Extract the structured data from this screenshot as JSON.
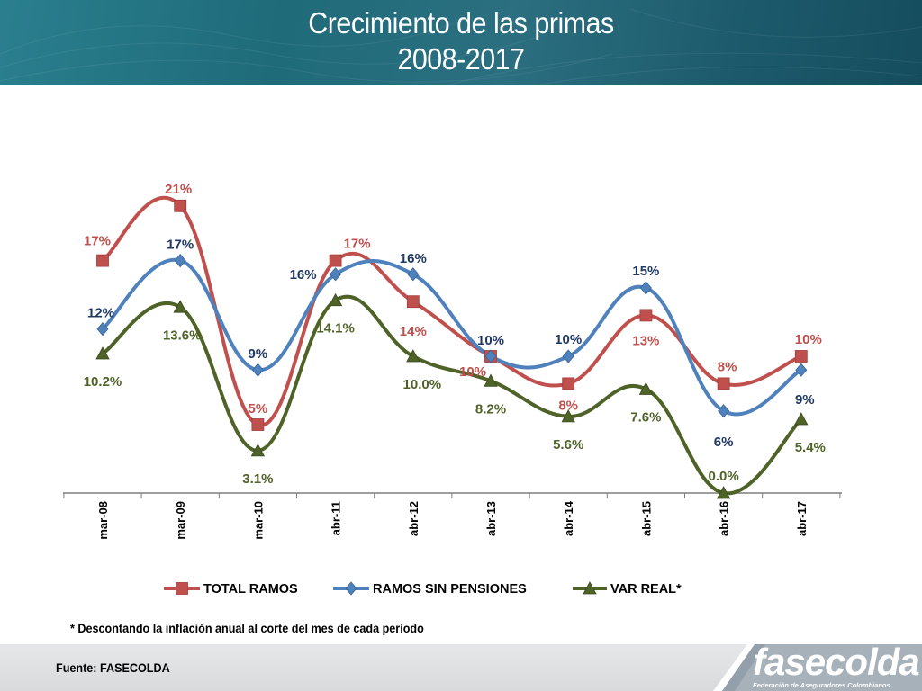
{
  "header": {
    "title_line1": "Crecimiento de las primas",
    "title_line2": "2008-2017"
  },
  "footnote": "* Descontando la inflación anual al corte del mes de cada período",
  "source": "Fuente: FASECOLDA",
  "logo": {
    "name": "fasecolda",
    "tagline": "Federación de Aseguradores Colombianos"
  },
  "chart_data": {
    "type": "line",
    "categories": [
      "mar-08",
      "mar-09",
      "mar-10",
      "abr-11",
      "abr-12",
      "abr-13",
      "abr-14",
      "abr-15",
      "abr-16",
      "abr-17"
    ],
    "series": [
      {
        "name": "TOTAL RAMOS",
        "color": "#c0504d",
        "marker": "square",
        "values": [
          17,
          21,
          5,
          17,
          14,
          10,
          8,
          13,
          8,
          10
        ],
        "labels": [
          "17%",
          "21%",
          "5%",
          "17%",
          "14%",
          "10%",
          "8%",
          "13%",
          "8%",
          "10%"
        ]
      },
      {
        "name": "RAMOS SIN PENSIONES",
        "color": "#4f81bd",
        "marker": "diamond",
        "values": [
          12,
          17,
          9,
          16,
          16,
          10,
          10,
          15,
          6,
          9
        ],
        "labels": [
          "12%",
          "17%",
          "9%",
          "16%",
          "16%",
          "10%",
          "10%",
          "15%",
          "6%",
          "9%"
        ]
      },
      {
        "name": "VAR REAL*",
        "color": "#4f6228",
        "marker": "triangle",
        "values": [
          10.2,
          13.6,
          3.1,
          14.1,
          10.0,
          8.2,
          5.6,
          7.6,
          0.0,
          5.4
        ],
        "labels": [
          "10.2%",
          "13.6%",
          "3.1%",
          "14.1%",
          "10.0%",
          "8.2%",
          "5.6%",
          "7.6%",
          "0.0%",
          "5.4%"
        ]
      }
    ],
    "label_colors": [
      "#c0504d",
      "#1f3864",
      "#4f6228"
    ],
    "smooth": true,
    "ylim": [
      0,
      23
    ],
    "grid": false,
    "legend_position": "bottom",
    "xlabel": "",
    "ylabel": ""
  }
}
